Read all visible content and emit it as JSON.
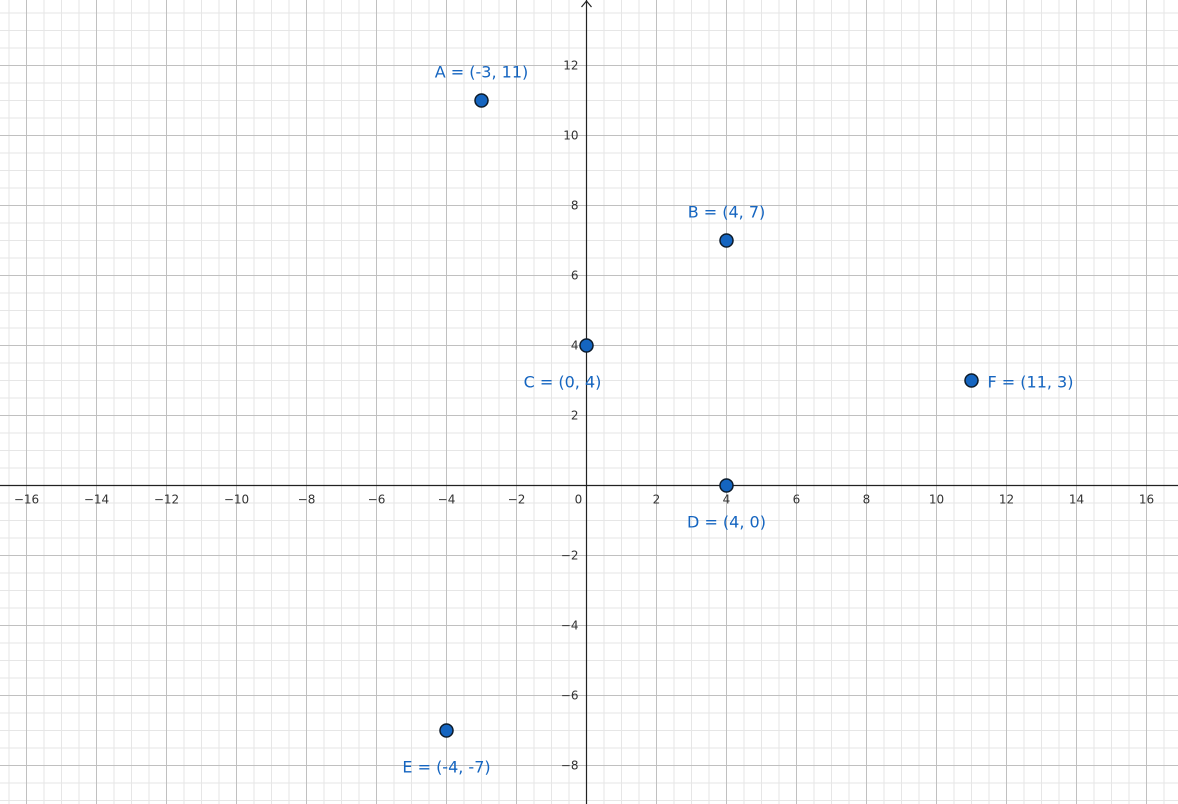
{
  "chart_data": {
    "type": "scatter",
    "xlim": [
      -16.7,
      16.7
    ],
    "ylim": [
      -9.1,
      13.9
    ],
    "grid": true,
    "x_ticks": [
      -16,
      -14,
      -12,
      -10,
      -8,
      -6,
      -4,
      -2,
      0,
      2,
      4,
      6,
      8,
      10,
      12,
      14,
      16
    ],
    "y_ticks": [
      -8,
      -6,
      -4,
      -2,
      2,
      4,
      6,
      8,
      10,
      12
    ],
    "x_tick_labels": [
      "−16",
      "−14",
      "−12",
      "−10",
      "−8",
      "−6",
      "−4",
      "−2",
      "0",
      "2",
      "4",
      "6",
      "8",
      "10",
      "12",
      "14",
      "16"
    ],
    "y_tick_labels": [
      "−8",
      "−6",
      "−4",
      "−2",
      "2",
      "4",
      "6",
      "8",
      "10",
      "12"
    ],
    "points": [
      {
        "name": "A",
        "x": -3,
        "y": 11,
        "label": "A = (-3, 11)",
        "label_anchor": "above"
      },
      {
        "name": "B",
        "x": 4,
        "y": 7,
        "label": "B = (4, 7)",
        "label_anchor": "above"
      },
      {
        "name": "C",
        "x": 0,
        "y": 4,
        "label": "C = (0, 4)",
        "label_anchor": "below"
      },
      {
        "name": "D",
        "x": 4,
        "y": 0,
        "label": "D = (4, 0)",
        "label_anchor": "below"
      },
      {
        "name": "E",
        "x": -4,
        "y": -7,
        "label": "E = (-4, -7)",
        "label_anchor": "below"
      },
      {
        "name": "F",
        "x": 11,
        "y": 3,
        "label": "F = (11, 3)",
        "label_anchor": "right"
      }
    ],
    "colors": {
      "point_fill": "#1565c0",
      "point_stroke": "#0d1b2a",
      "label": "#1976d2",
      "major_grid": "#c0c0c0",
      "minor_grid": "#e6e6e6",
      "axis": "#222222"
    }
  }
}
